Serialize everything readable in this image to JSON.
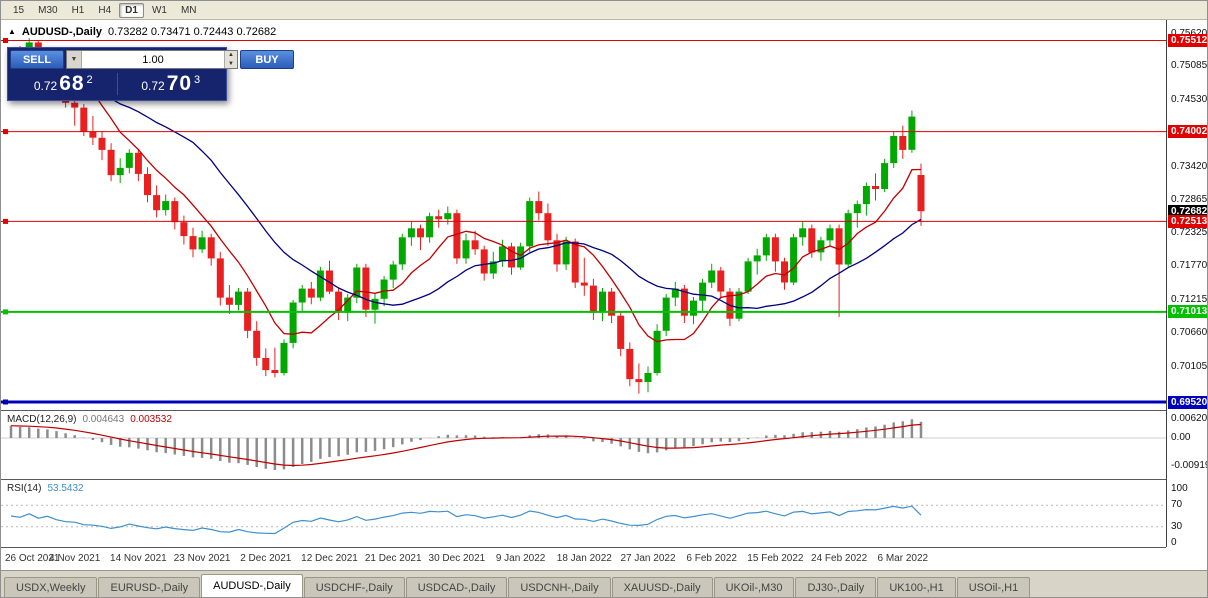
{
  "toolbar": {
    "timeframes": [
      "15",
      "M30",
      "H1",
      "H4",
      "D1",
      "W1",
      "MN"
    ],
    "active": "D1"
  },
  "chart_header": {
    "collapse_icon": "▲",
    "symbol": "AUDUSD-,Daily",
    "ohlc": "0.73282 0.73471 0.72443 0.72682"
  },
  "one_click_trading": {
    "sell_label": "SELL",
    "buy_label": "BUY",
    "volume": "1.00",
    "sell_price": {
      "base": "0.72",
      "big": "68",
      "sup": "2"
    },
    "buy_price": {
      "base": "0.72",
      "big": "70",
      "sup": "3"
    }
  },
  "price_axis": {
    "ticks": [
      {
        "label": "0.75620",
        "value": 0.7562
      },
      {
        "label": "0.75085",
        "value": 0.75085
      },
      {
        "label": "0.74530",
        "value": 0.7453
      },
      {
        "label": "0.73420",
        "value": 0.7342
      },
      {
        "label": "0.72865",
        "value": 0.72865
      },
      {
        "label": "0.72325",
        "value": 0.72325
      },
      {
        "label": "0.71770",
        "value": 0.7177
      },
      {
        "label": "0.71215",
        "value": 0.71215
      },
      {
        "label": "0.70660",
        "value": 0.7066
      },
      {
        "label": "0.70105",
        "value": 0.70105
      }
    ],
    "current_price": {
      "label": "0.72682",
      "value": 0.72682,
      "bg": "#000000"
    }
  },
  "indicators": {
    "macd": {
      "name": "MACD(12,26,9)",
      "main_value": "0.004643",
      "signal_value": "0.003532",
      "axis": [
        {
          "label": "0.00620",
          "value": 0.0062
        },
        {
          "label": "0.00",
          "value": 0
        },
        {
          "label": "-0.00919",
          "value": -0.00919
        }
      ]
    },
    "rsi": {
      "name": "RSI(14)",
      "value": "53.5432",
      "axis": [
        {
          "label": "100",
          "value": 100
        },
        {
          "label": "70",
          "value": 70
        },
        {
          "label": "30",
          "value": 30
        },
        {
          "label": "0",
          "value": 0
        }
      ],
      "levels": [
        70,
        30
      ]
    }
  },
  "date_axis": {
    "labels": [
      "26 Oct 2021",
      "4 Nov 2021",
      "14 Nov 2021",
      "23 Nov 2021",
      "2 Dec 2021",
      "12 Dec 2021",
      "21 Dec 2021",
      "30 Dec 2021",
      "9 Jan 2022",
      "18 Jan 2022",
      "27 Jan 2022",
      "6 Feb 2022",
      "15 Feb 2022",
      "24 Feb 2022",
      "6 Mar 2022"
    ]
  },
  "tabs": {
    "items": [
      "USDX,Weekly",
      "EURUSD-,Daily",
      "AUDUSD-,Daily",
      "USDCHF-,Daily",
      "USDCAD-,Daily",
      "USDCNH-,Daily",
      "XAUUSD-,Daily",
      "UKOil-,M30",
      "DJ30-,Daily",
      "UK100-,H1",
      "USOil-,H1"
    ],
    "active": "AUDUSD-,Daily"
  },
  "colors": {
    "bull": "#00a800",
    "bear": "#e82020",
    "ma_fast": "#c00000",
    "ma_slow": "#000080",
    "macd_hist": "#8c8c8c",
    "macd_signal": "#c00000",
    "rsi_line": "#3f8fce",
    "badge_red": "#e00000",
    "line_green": "#00c000",
    "line_blue": "#0000bb"
  },
  "chart_data": {
    "type": "candlestick",
    "symbol": "AUDUSD",
    "timeframe": "Daily",
    "title": "AUDUSD-,Daily",
    "current_ohlc": {
      "open": 0.73282,
      "high": 0.73471,
      "low": 0.72443,
      "close": 0.72682
    },
    "y_axis": {
      "min": 0.6952,
      "max": 0.7562
    },
    "candles": [
      [
        0.749,
        0.7535,
        0.7482,
        0.7525
      ],
      [
        0.7525,
        0.7542,
        0.75,
        0.7512
      ],
      [
        0.7512,
        0.7555,
        0.7506,
        0.7548
      ],
      [
        0.7548,
        0.7551,
        0.7494,
        0.75
      ],
      [
        0.75,
        0.7531,
        0.749,
        0.7521
      ],
      [
        0.7521,
        0.7526,
        0.7468,
        0.7478
      ],
      [
        0.7478,
        0.7492,
        0.744,
        0.7448
      ],
      [
        0.7448,
        0.7471,
        0.741,
        0.744
      ],
      [
        0.744,
        0.7446,
        0.7393,
        0.74
      ],
      [
        0.74,
        0.7426,
        0.7378,
        0.739
      ],
      [
        0.739,
        0.7401,
        0.7353,
        0.737
      ],
      [
        0.737,
        0.7381,
        0.7318,
        0.7328
      ],
      [
        0.7328,
        0.7356,
        0.7315,
        0.734
      ],
      [
        0.734,
        0.7371,
        0.7331,
        0.7365
      ],
      [
        0.7365,
        0.737,
        0.7318,
        0.733
      ],
      [
        0.733,
        0.7341,
        0.7283,
        0.7295
      ],
      [
        0.7295,
        0.7311,
        0.7258,
        0.727
      ],
      [
        0.727,
        0.7296,
        0.7261,
        0.7285
      ],
      [
        0.7285,
        0.7291,
        0.7238,
        0.725
      ],
      [
        0.725,
        0.7261,
        0.7213,
        0.7227
      ],
      [
        0.7227,
        0.7241,
        0.7192,
        0.7205
      ],
      [
        0.7205,
        0.7236,
        0.7199,
        0.7225
      ],
      [
        0.7225,
        0.7231,
        0.7178,
        0.719
      ],
      [
        0.719,
        0.7201,
        0.7112,
        0.7125
      ],
      [
        0.7125,
        0.7146,
        0.7098,
        0.7113
      ],
      [
        0.7113,
        0.7141,
        0.7104,
        0.7135
      ],
      [
        0.7135,
        0.7141,
        0.7058,
        0.707
      ],
      [
        0.707,
        0.7086,
        0.7012,
        0.7025
      ],
      [
        0.7025,
        0.7041,
        0.6995,
        0.7005
      ],
      [
        0.7005,
        0.7042,
        0.6993,
        0.7
      ],
      [
        0.7,
        0.7056,
        0.6996,
        0.705
      ],
      [
        0.705,
        0.7121,
        0.7041,
        0.7117
      ],
      [
        0.7117,
        0.7146,
        0.7101,
        0.714
      ],
      [
        0.714,
        0.7151,
        0.7114,
        0.7125
      ],
      [
        0.7125,
        0.7176,
        0.7119,
        0.717
      ],
      [
        0.717,
        0.7186,
        0.7131,
        0.7135
      ],
      [
        0.7135,
        0.7141,
        0.7088,
        0.71
      ],
      [
        0.71,
        0.7131,
        0.7086,
        0.7125
      ],
      [
        0.7125,
        0.7181,
        0.7116,
        0.7175
      ],
      [
        0.7175,
        0.7181,
        0.7093,
        0.7105
      ],
      [
        0.7105,
        0.7131,
        0.7082,
        0.7123
      ],
      [
        0.7123,
        0.7161,
        0.7111,
        0.7155
      ],
      [
        0.7155,
        0.7186,
        0.7141,
        0.718
      ],
      [
        0.718,
        0.7231,
        0.7171,
        0.7225
      ],
      [
        0.7225,
        0.7251,
        0.7211,
        0.724
      ],
      [
        0.724,
        0.7246,
        0.7204,
        0.7225
      ],
      [
        0.7225,
        0.7266,
        0.7216,
        0.726
      ],
      [
        0.726,
        0.7271,
        0.7241,
        0.7255
      ],
      [
        0.7255,
        0.7276,
        0.7246,
        0.7265
      ],
      [
        0.7265,
        0.7271,
        0.7181,
        0.719
      ],
      [
        0.719,
        0.7231,
        0.7181,
        0.722
      ],
      [
        0.722,
        0.7236,
        0.7196,
        0.7205
      ],
      [
        0.7205,
        0.7211,
        0.7153,
        0.7165
      ],
      [
        0.7165,
        0.7201,
        0.7156,
        0.7185
      ],
      [
        0.7185,
        0.7221,
        0.7176,
        0.721
      ],
      [
        0.721,
        0.7216,
        0.7163,
        0.7175
      ],
      [
        0.7175,
        0.7216,
        0.7171,
        0.721
      ],
      [
        0.721,
        0.7291,
        0.7201,
        0.7285
      ],
      [
        0.7285,
        0.7301,
        0.7253,
        0.7265
      ],
      [
        0.7265,
        0.7281,
        0.7211,
        0.722
      ],
      [
        0.722,
        0.7231,
        0.7168,
        0.718
      ],
      [
        0.718,
        0.7226,
        0.7171,
        0.7218
      ],
      [
        0.7218,
        0.7223,
        0.7141,
        0.715
      ],
      [
        0.715,
        0.7191,
        0.7128,
        0.7145
      ],
      [
        0.7145,
        0.7156,
        0.7088,
        0.71
      ],
      [
        0.71,
        0.7141,
        0.7086,
        0.7135
      ],
      [
        0.7135,
        0.7141,
        0.7083,
        0.7095
      ],
      [
        0.7095,
        0.7101,
        0.7028,
        0.704
      ],
      [
        0.704,
        0.7051,
        0.6978,
        0.699
      ],
      [
        0.699,
        0.7016,
        0.6966,
        0.6985
      ],
      [
        0.6985,
        0.7011,
        0.6968,
        0.7
      ],
      [
        0.7,
        0.7081,
        0.6996,
        0.707
      ],
      [
        0.707,
        0.7131,
        0.7061,
        0.7125
      ],
      [
        0.7125,
        0.7151,
        0.7111,
        0.714
      ],
      [
        0.714,
        0.7146,
        0.7083,
        0.7095
      ],
      [
        0.7095,
        0.7126,
        0.7081,
        0.712
      ],
      [
        0.712,
        0.7156,
        0.7101,
        0.715
      ],
      [
        0.715,
        0.7181,
        0.7141,
        0.717
      ],
      [
        0.717,
        0.7176,
        0.7123,
        0.7135
      ],
      [
        0.7135,
        0.7141,
        0.7078,
        0.709
      ],
      [
        0.709,
        0.7141,
        0.7086,
        0.7135
      ],
      [
        0.7135,
        0.7191,
        0.7131,
        0.7185
      ],
      [
        0.7185,
        0.7206,
        0.7163,
        0.7195
      ],
      [
        0.7195,
        0.7231,
        0.7186,
        0.7225
      ],
      [
        0.7225,
        0.7231,
        0.7168,
        0.7185
      ],
      [
        0.7185,
        0.7191,
        0.7138,
        0.715
      ],
      [
        0.715,
        0.7231,
        0.7146,
        0.7225
      ],
      [
        0.7225,
        0.7251,
        0.7211,
        0.724
      ],
      [
        0.724,
        0.7246,
        0.7191,
        0.72
      ],
      [
        0.72,
        0.7226,
        0.7186,
        0.722
      ],
      [
        0.722,
        0.7246,
        0.7211,
        0.724
      ],
      [
        0.724,
        0.7246,
        0.7093,
        0.718
      ],
      [
        0.718,
        0.7271,
        0.7176,
        0.7265
      ],
      [
        0.7265,
        0.7286,
        0.7241,
        0.728
      ],
      [
        0.728,
        0.7316,
        0.7261,
        0.731
      ],
      [
        0.731,
        0.7331,
        0.7286,
        0.7305
      ],
      [
        0.7305,
        0.7355,
        0.73,
        0.7348
      ],
      [
        0.7348,
        0.74,
        0.734,
        0.7393
      ],
      [
        0.7393,
        0.741,
        0.7355,
        0.737
      ],
      [
        0.737,
        0.7435,
        0.7365,
        0.7425
      ],
      [
        0.73282,
        0.73471,
        0.72443,
        0.72682
      ]
    ],
    "x_ticks": {
      "indices": [
        0,
        7,
        14,
        21,
        28,
        35,
        42,
        49,
        56,
        63,
        70,
        77,
        84,
        91,
        98
      ],
      "labels": [
        "26 Oct 2021",
        "4 Nov 2021",
        "14 Nov 2021",
        "23 Nov 2021",
        "2 Dec 2021",
        "12 Dec 2021",
        "21 Dec 2021",
        "30 Dec 2021",
        "9 Jan 2022",
        "18 Jan 2022",
        "27 Jan 2022",
        "6 Feb 2022",
        "15 Feb 2022",
        "24 Feb 2022",
        "6 Mar 2022"
      ]
    },
    "hlines": [
      {
        "price": 0.75512,
        "label": "0.75512",
        "color": "#e00000",
        "width": 1
      },
      {
        "price": 0.74002,
        "label": "0.74002",
        "color": "#e00000",
        "width": 1
      },
      {
        "price": 0.72513,
        "label": "0.72513",
        "color": "#e00000",
        "width": 1
      },
      {
        "price": 0.71013,
        "label": "0.71013",
        "color": "#00c000",
        "width": 2
      },
      {
        "price": 0.6952,
        "label": "0.69520",
        "color": "#0000bb",
        "width": 3
      }
    ],
    "moving_averages": [
      {
        "window": 8,
        "color": "#c00000"
      },
      {
        "window": 21,
        "color": "#000080"
      }
    ],
    "macd": {
      "fast": 12,
      "slow": 26,
      "signal": 9
    },
    "rsi": {
      "period": 14
    }
  }
}
